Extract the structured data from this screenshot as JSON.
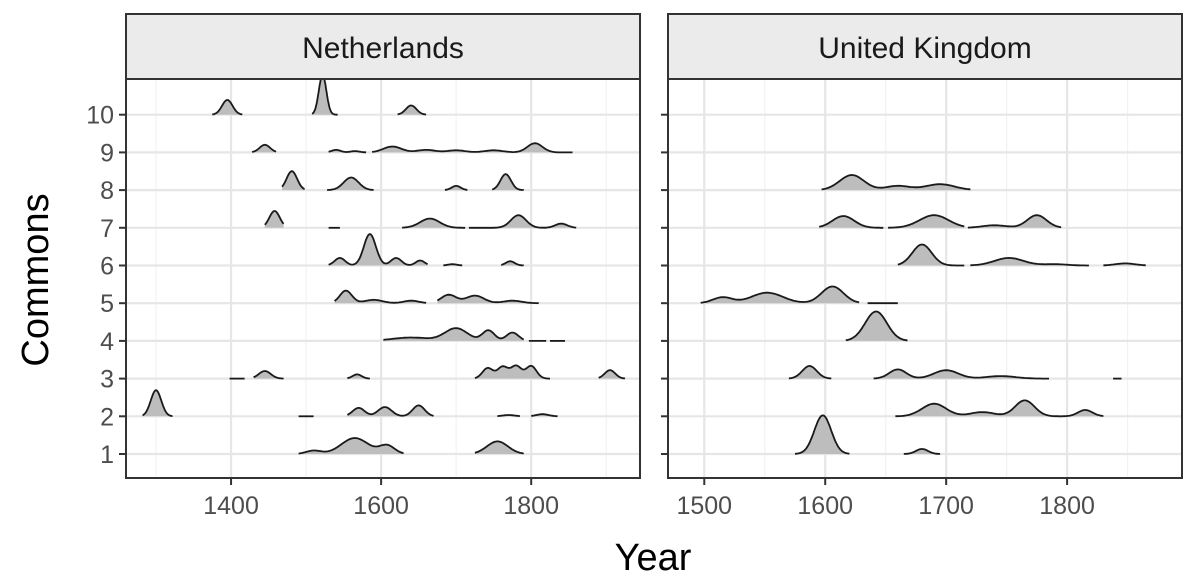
{
  "chart_data": {
    "type": "ridgeline",
    "xlabel": "Year",
    "ylabel": "Commons",
    "y_categories": [
      "1",
      "2",
      "3",
      "4",
      "5",
      "6",
      "7",
      "8",
      "9",
      "10"
    ],
    "panels": [
      {
        "name": "Netherlands",
        "xlim": [
          1260,
          1945
        ],
        "x_ticks": [
          1400,
          1600,
          1800
        ],
        "x_tick_labels": [
          "1400",
          "1600",
          "1800"
        ],
        "ridges": [
          {
            "commons": "1",
            "segments": [
              {
                "start": 1490,
                "end": 1630,
                "peaks": [
                  {
                    "x": 1510,
                    "h": 0.08,
                    "w": 10
                  },
                  {
                    "x": 1565,
                    "h": 0.38,
                    "w": 18
                  },
                  {
                    "x": 1608,
                    "h": 0.2,
                    "w": 10
                  }
                ]
              },
              {
                "start": 1725,
                "end": 1790,
                "peaks": [
                  {
                    "x": 1755,
                    "h": 0.3,
                    "w": 14
                  }
                ]
              }
            ]
          },
          {
            "commons": "2",
            "segments": [
              {
                "start": 1282,
                "end": 1322,
                "peaks": [
                  {
                    "x": 1300,
                    "h": 0.62,
                    "w": 7
                  }
                ]
              },
              {
                "start": 1490,
                "end": 1510,
                "peaks": []
              },
              {
                "start": 1555,
                "end": 1670,
                "peaks": [
                  {
                    "x": 1570,
                    "h": 0.2,
                    "w": 8
                  },
                  {
                    "x": 1605,
                    "h": 0.22,
                    "w": 9
                  },
                  {
                    "x": 1650,
                    "h": 0.26,
                    "w": 8
                  }
                ]
              },
              {
                "start": 1755,
                "end": 1785,
                "peaks": [
                  {
                    "x": 1770,
                    "h": 0.03,
                    "w": 8
                  }
                ]
              },
              {
                "start": 1800,
                "end": 1835,
                "peaks": [
                  {
                    "x": 1815,
                    "h": 0.05,
                    "w": 8
                  }
                ]
              }
            ]
          },
          {
            "commons": "3",
            "segments": [
              {
                "start": 1398,
                "end": 1418,
                "peaks": []
              },
              {
                "start": 1430,
                "end": 1470,
                "peaks": [
                  {
                    "x": 1445,
                    "h": 0.18,
                    "w": 8
                  }
                ]
              },
              {
                "start": 1555,
                "end": 1585,
                "peaks": [
                  {
                    "x": 1568,
                    "h": 0.1,
                    "w": 6
                  }
                ]
              },
              {
                "start": 1725,
                "end": 1825,
                "peaks": [
                  {
                    "x": 1742,
                    "h": 0.25,
                    "w": 7
                  },
                  {
                    "x": 1762,
                    "h": 0.28,
                    "w": 7
                  },
                  {
                    "x": 1780,
                    "h": 0.3,
                    "w": 7
                  },
                  {
                    "x": 1800,
                    "h": 0.3,
                    "w": 7
                  }
                ]
              },
              {
                "start": 1890,
                "end": 1925,
                "peaks": [
                  {
                    "x": 1905,
                    "h": 0.2,
                    "w": 7
                  }
                ]
              }
            ]
          },
          {
            "commons": "4",
            "segments": [
              {
                "start": 1603,
                "end": 1790,
                "peaks": [
                  {
                    "x": 1640,
                    "h": 0.08,
                    "w": 25
                  },
                  {
                    "x": 1700,
                    "h": 0.3,
                    "w": 15
                  },
                  {
                    "x": 1743,
                    "h": 0.25,
                    "w": 8
                  },
                  {
                    "x": 1775,
                    "h": 0.2,
                    "w": 8
                  }
                ]
              },
              {
                "start": 1797,
                "end": 1820,
                "peaks": []
              },
              {
                "start": 1825,
                "end": 1845,
                "peaks": []
              }
            ]
          },
          {
            "commons": "5",
            "segments": [
              {
                "start": 1538,
                "end": 1660,
                "peaks": [
                  {
                    "x": 1553,
                    "h": 0.3,
                    "w": 8
                  },
                  {
                    "x": 1590,
                    "h": 0.08,
                    "w": 12
                  },
                  {
                    "x": 1640,
                    "h": 0.06,
                    "w": 10
                  }
                ]
              },
              {
                "start": 1675,
                "end": 1810,
                "peaks": [
                  {
                    "x": 1690,
                    "h": 0.2,
                    "w": 10
                  },
                  {
                    "x": 1725,
                    "h": 0.18,
                    "w": 12
                  },
                  {
                    "x": 1775,
                    "h": 0.06,
                    "w": 12
                  }
                ]
              }
            ]
          },
          {
            "commons": "6",
            "segments": [
              {
                "start": 1530,
                "end": 1662,
                "peaks": [
                  {
                    "x": 1545,
                    "h": 0.18,
                    "w": 7
                  },
                  {
                    "x": 1585,
                    "h": 0.75,
                    "w": 8
                  },
                  {
                    "x": 1620,
                    "h": 0.18,
                    "w": 7
                  },
                  {
                    "x": 1652,
                    "h": 0.12,
                    "w": 6
                  }
                ]
              },
              {
                "start": 1683,
                "end": 1708,
                "peaks": [
                  {
                    "x": 1695,
                    "h": 0.03,
                    "w": 6
                  }
                ]
              },
              {
                "start": 1760,
                "end": 1790,
                "peaks": [
                  {
                    "x": 1772,
                    "h": 0.1,
                    "w": 6
                  }
                ]
              }
            ]
          },
          {
            "commons": "7",
            "segments": [
              {
                "start": 1445,
                "end": 1470,
                "peaks": [
                  {
                    "x": 1458,
                    "h": 0.4,
                    "w": 7
                  }
                ]
              },
              {
                "start": 1530,
                "end": 1545,
                "peaks": []
              },
              {
                "start": 1628,
                "end": 1712,
                "peaks": [
                  {
                    "x": 1665,
                    "h": 0.22,
                    "w": 13
                  }
                ]
              },
              {
                "start": 1717,
                "end": 1860,
                "peaks": [
                  {
                    "x": 1783,
                    "h": 0.3,
                    "w": 10
                  },
                  {
                    "x": 1840,
                    "h": 0.1,
                    "w": 8
                  }
                ]
              }
            ]
          },
          {
            "commons": "8",
            "segments": [
              {
                "start": 1468,
                "end": 1498,
                "peaks": [
                  {
                    "x": 1481,
                    "h": 0.45,
                    "w": 7
                  }
                ]
              },
              {
                "start": 1528,
                "end": 1590,
                "peaks": [
                  {
                    "x": 1560,
                    "h": 0.3,
                    "w": 10
                  }
                ]
              },
              {
                "start": 1685,
                "end": 1715,
                "peaks": [
                  {
                    "x": 1700,
                    "h": 0.1,
                    "w": 6
                  }
                ]
              },
              {
                "start": 1748,
                "end": 1790,
                "peaks": [
                  {
                    "x": 1766,
                    "h": 0.38,
                    "w": 7
                  }
                ]
              }
            ]
          },
          {
            "commons": "9",
            "segments": [
              {
                "start": 1428,
                "end": 1460,
                "peaks": [
                  {
                    "x": 1445,
                    "h": 0.18,
                    "w": 7
                  }
                ]
              },
              {
                "start": 1530,
                "end": 1580,
                "peaks": [
                  {
                    "x": 1540,
                    "h": 0.06,
                    "w": 6
                  },
                  {
                    "x": 1565,
                    "h": 0.03,
                    "w": 6
                  }
                ]
              },
              {
                "start": 1588,
                "end": 1855,
                "peaks": [
                  {
                    "x": 1615,
                    "h": 0.14,
                    "w": 12
                  },
                  {
                    "x": 1660,
                    "h": 0.06,
                    "w": 12
                  },
                  {
                    "x": 1700,
                    "h": 0.05,
                    "w": 12
                  },
                  {
                    "x": 1750,
                    "h": 0.05,
                    "w": 12
                  },
                  {
                    "x": 1805,
                    "h": 0.22,
                    "w": 10
                  }
                ]
              }
            ]
          },
          {
            "commons": "10",
            "segments": [
              {
                "start": 1375,
                "end": 1415,
                "peaks": [
                  {
                    "x": 1395,
                    "h": 0.35,
                    "w": 7
                  }
                ]
              },
              {
                "start": 1508,
                "end": 1542,
                "peaks": [
                  {
                    "x": 1522,
                    "h": 0.95,
                    "w": 5
                  }
                ]
              },
              {
                "start": 1622,
                "end": 1660,
                "peaks": [
                  {
                    "x": 1640,
                    "h": 0.22,
                    "w": 7
                  }
                ]
              }
            ]
          }
        ]
      },
      {
        "name": "United Kingdom",
        "xlim": [
          1470,
          1895
        ],
        "x_ticks": [
          1500,
          1600,
          1700,
          1800
        ],
        "x_tick_labels": [
          "1500",
          "1600",
          "1700",
          "1800"
        ],
        "ridges": [
          {
            "commons": "1",
            "segments": [
              {
                "start": 1575,
                "end": 1620,
                "peaks": [
                  {
                    "x": 1598,
                    "h": 0.92,
                    "w": 7
                  }
                ]
              },
              {
                "start": 1665,
                "end": 1695,
                "peaks": [
                  {
                    "x": 1680,
                    "h": 0.12,
                    "w": 5
                  }
                ]
              }
            ]
          },
          {
            "commons": "2",
            "segments": [
              {
                "start": 1658,
                "end": 1795,
                "peaks": [
                  {
                    "x": 1690,
                    "h": 0.3,
                    "w": 10
                  },
                  {
                    "x": 1730,
                    "h": 0.1,
                    "w": 10
                  },
                  {
                    "x": 1765,
                    "h": 0.38,
                    "w": 8
                  }
                ]
              },
              {
                "start": 1795,
                "end": 1830,
                "peaks": [
                  {
                    "x": 1815,
                    "h": 0.15,
                    "w": 6
                  }
                ]
              }
            ]
          },
          {
            "commons": "3",
            "segments": [
              {
                "start": 1570,
                "end": 1605,
                "peaks": [
                  {
                    "x": 1587,
                    "h": 0.3,
                    "w": 6
                  }
                ]
              },
              {
                "start": 1640,
                "end": 1785,
                "peaks": [
                  {
                    "x": 1660,
                    "h": 0.22,
                    "w": 7
                  },
                  {
                    "x": 1700,
                    "h": 0.2,
                    "w": 10
                  },
                  {
                    "x": 1745,
                    "h": 0.06,
                    "w": 12
                  }
                ]
              },
              {
                "start": 1838,
                "end": 1845,
                "peaks": []
              }
            ]
          },
          {
            "commons": "4",
            "segments": [
              {
                "start": 1617,
                "end": 1668,
                "peaks": [
                  {
                    "x": 1642,
                    "h": 0.7,
                    "w": 9
                  }
                ]
              }
            ]
          },
          {
            "commons": "5",
            "segments": [
              {
                "start": 1497,
                "end": 1628,
                "peaks": [
                  {
                    "x": 1515,
                    "h": 0.14,
                    "w": 8
                  },
                  {
                    "x": 1552,
                    "h": 0.25,
                    "w": 13
                  },
                  {
                    "x": 1606,
                    "h": 0.4,
                    "w": 9
                  }
                ]
              },
              {
                "start": 1635,
                "end": 1660,
                "peaks": []
              }
            ]
          },
          {
            "commons": "6",
            "segments": [
              {
                "start": 1660,
                "end": 1715,
                "peaks": [
                  {
                    "x": 1680,
                    "h": 0.5,
                    "w": 8
                  }
                ]
              },
              {
                "start": 1720,
                "end": 1818,
                "peaks": [
                  {
                    "x": 1752,
                    "h": 0.18,
                    "w": 12
                  },
                  {
                    "x": 1790,
                    "h": 0.03,
                    "w": 10
                  }
                ]
              },
              {
                "start": 1830,
                "end": 1865,
                "peaks": [
                  {
                    "x": 1848,
                    "h": 0.05,
                    "w": 8
                  }
                ]
              }
            ]
          },
          {
            "commons": "7",
            "segments": [
              {
                "start": 1595,
                "end": 1648,
                "peaks": [
                  {
                    "x": 1615,
                    "h": 0.28,
                    "w": 9
                  }
                ]
              },
              {
                "start": 1652,
                "end": 1715,
                "peaks": [
                  {
                    "x": 1690,
                    "h": 0.3,
                    "w": 12
                  }
                ]
              },
              {
                "start": 1718,
                "end": 1795,
                "peaks": [
                  {
                    "x": 1740,
                    "h": 0.06,
                    "w": 10
                  },
                  {
                    "x": 1775,
                    "h": 0.3,
                    "w": 8
                  }
                ]
              }
            ]
          },
          {
            "commons": "8",
            "segments": [
              {
                "start": 1597,
                "end": 1720,
                "peaks": [
                  {
                    "x": 1622,
                    "h": 0.36,
                    "w": 10
                  },
                  {
                    "x": 1660,
                    "h": 0.1,
                    "w": 10
                  },
                  {
                    "x": 1695,
                    "h": 0.14,
                    "w": 12
                  }
                ]
              }
            ]
          }
        ]
      }
    ]
  }
}
